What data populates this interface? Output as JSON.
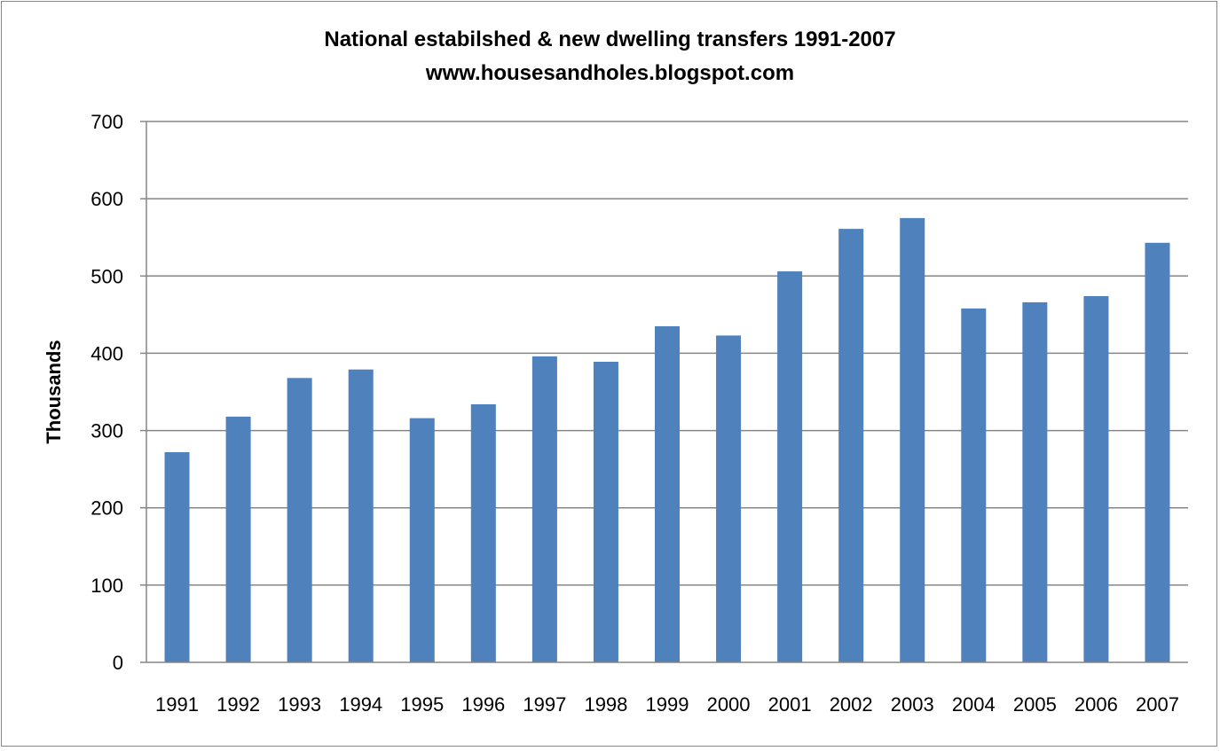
{
  "chart_data": {
    "type": "bar",
    "title": "National estabilshed & new dwelling transfers 1991-2007",
    "subtitle": "www.housesandholes.blogspot.com",
    "xlabel": "",
    "ylabel": "Thousands",
    "ylim": [
      0,
      700
    ],
    "yticks": [
      0,
      100,
      200,
      300,
      400,
      500,
      600,
      700
    ],
    "grid": true,
    "legend": "none",
    "categories": [
      "1991",
      "1992",
      "1993",
      "1994",
      "1995",
      "1996",
      "1997",
      "1998",
      "1999",
      "2000",
      "2001",
      "2002",
      "2003",
      "2004",
      "2005",
      "2006",
      "2007"
    ],
    "series": [
      {
        "name": "Transfers",
        "color": "#4f81bd",
        "values": [
          272,
          318,
          368,
          379,
          316,
          334,
          396,
          389,
          435,
          423,
          506,
          561,
          575,
          458,
          466,
          474,
          543
        ]
      }
    ]
  }
}
